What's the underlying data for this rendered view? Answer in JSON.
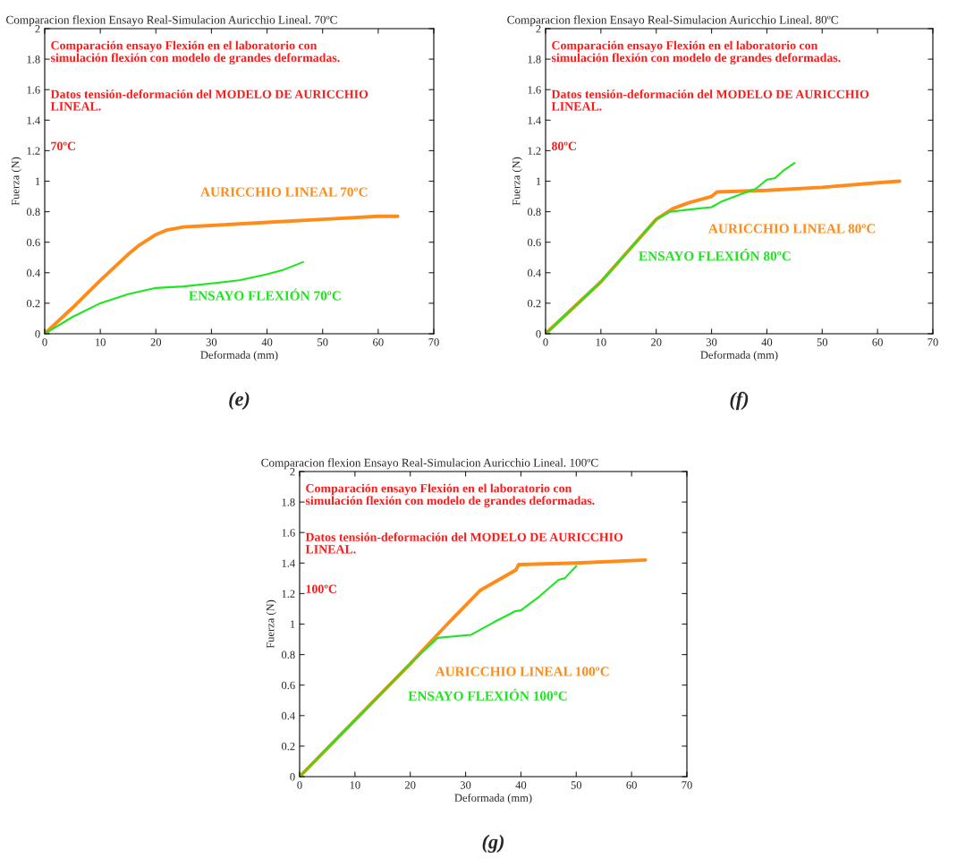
{
  "chart_data": [
    {
      "type": "line",
      "title": "Comparacion flexion Ensayo Real-Simulacion Auricchio Lineal. 70ºC",
      "xlabel": "Deformada (mm)",
      "ylabel": "Fuerza (N)",
      "xlim": [
        0,
        70
      ],
      "ylim": [
        0,
        2
      ],
      "xticks": [
        0,
        10,
        20,
        30,
        40,
        50,
        60,
        70
      ],
      "yticks": [
        0,
        0.2,
        0.4,
        0.6,
        0.8,
        1,
        1.2,
        1.4,
        1.6,
        1.8,
        2
      ],
      "grid": false,
      "legend": false,
      "annotations": [
        "Comparación ensayo Flexión en el laboratorio con\nsimulación flexión con modelo de grandes deformadas.",
        "Datos tensión-deformación del MODELO DE AURICCHIO\nLINEAL.",
        "70ºC",
        "(e)"
      ],
      "series": [
        {
          "name": "AURICCHIO LINEAL 70ºC",
          "color": "#ff8c1a",
          "x": [
            0,
            5,
            10,
            15,
            17,
            20,
            22,
            25,
            30,
            40,
            50,
            60,
            63.5
          ],
          "values": [
            0,
            0.17,
            0.35,
            0.52,
            0.58,
            0.65,
            0.68,
            0.7,
            0.71,
            0.73,
            0.75,
            0.77,
            0.77
          ]
        },
        {
          "name": "ENSAYO FLEXIÓN 70ºC",
          "color": "#1ee61e",
          "x": [
            0,
            5,
            10,
            15,
            20,
            25,
            30,
            35,
            40,
            43,
            46.5
          ],
          "values": [
            0,
            0.11,
            0.2,
            0.26,
            0.3,
            0.31,
            0.33,
            0.35,
            0.39,
            0.42,
            0.47
          ]
        }
      ]
    },
    {
      "type": "line",
      "title": "Comparacion flexion Ensayo Real-Simulacion Auricchio Lineal. 80ºC",
      "xlabel": "Deformada (mm)",
      "ylabel": "Fuerza (N)",
      "xlim": [
        0,
        70
      ],
      "ylim": [
        0,
        2
      ],
      "xticks": [
        0,
        10,
        20,
        30,
        40,
        50,
        60,
        70
      ],
      "yticks": [
        0,
        0.2,
        0.4,
        0.6,
        0.8,
        1,
        1.2,
        1.4,
        1.6,
        1.8,
        2
      ],
      "grid": false,
      "legend": false,
      "annotations": [
        "Comparación ensayo Flexión en el laboratorio con\nsimulación flexión con modelo de grandes deformadas.",
        "Datos tensión-deformación del MODELO DE AURICCHIO\nLINEAL.",
        "80ºC",
        "(f)"
      ],
      "series": [
        {
          "name": "AURICCHIO LINEAL 80ºC",
          "color": "#ff8c1a",
          "x": [
            0,
            10,
            20,
            23,
            26,
            30,
            31,
            40,
            50,
            60,
            64
          ],
          "values": [
            0,
            0.34,
            0.75,
            0.82,
            0.86,
            0.9,
            0.93,
            0.94,
            0.96,
            0.99,
            1.0
          ]
        },
        {
          "name": "ENSAYO FLEXIÓN 80ºC",
          "color": "#1ee61e",
          "x": [
            0,
            10,
            20,
            22.5,
            25,
            30,
            32,
            35,
            38,
            40,
            41.5,
            43,
            45
          ],
          "values": [
            0,
            0.34,
            0.75,
            0.8,
            0.81,
            0.83,
            0.87,
            0.91,
            0.95,
            1.01,
            1.02,
            1.07,
            1.12
          ]
        }
      ]
    },
    {
      "type": "line",
      "title": "Comparacion flexion Ensayo Real-Simulacion Auricchio Lineal. 100ºC",
      "xlabel": "Deformada (mm)",
      "ylabel": "Fuerza (N)",
      "xlim": [
        0,
        70
      ],
      "ylim": [
        0,
        2
      ],
      "xticks": [
        0,
        10,
        20,
        30,
        40,
        50,
        60,
        70
      ],
      "yticks": [
        0,
        0.2,
        0.4,
        0.6,
        0.8,
        1,
        1.2,
        1.4,
        1.6,
        1.8,
        2
      ],
      "grid": false,
      "legend": false,
      "annotations": [
        "Comparación ensayo Flexión en el laboratorio con\nsimulación flexión con modelo de grandes deformadas.",
        "Datos tensión-deformación del MODELO DE AURICCHIO\nLINEAL.",
        "100ºC",
        "(g)"
      ],
      "series": [
        {
          "name": "AURICCHIO LINEAL 100ºC",
          "color": "#ff8c1a",
          "x": [
            0,
            10,
            20,
            22.3,
            26.7,
            32.6,
            39.1,
            39.6,
            50,
            62.5
          ],
          "values": [
            0,
            0.37,
            0.74,
            0.83,
            1.0,
            1.22,
            1.355,
            1.39,
            1.4,
            1.42
          ]
        },
        {
          "name": "ENSAYO FLEXIÓN 100ºC",
          "color": "#1ee61e",
          "x": [
            0,
            10,
            20,
            22.3,
            25,
            31,
            35,
            39,
            40,
            43.3,
            46.8,
            47.9,
            50
          ],
          "values": [
            0,
            0.37,
            0.74,
            0.82,
            0.91,
            0.93,
            1.01,
            1.085,
            1.09,
            1.18,
            1.29,
            1.3,
            1.38
          ]
        }
      ]
    }
  ]
}
